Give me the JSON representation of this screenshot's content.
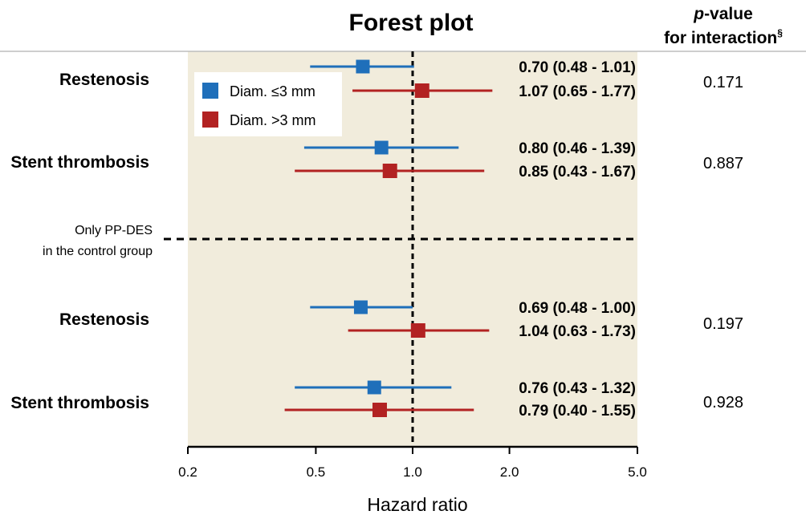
{
  "chart_data": {
    "type": "forest",
    "title": "Forest plot",
    "pvalue_header": {
      "italic": "p",
      "rest": "-value",
      "line2": "for interaction",
      "sup": "§"
    },
    "xlabel": "Hazard ratio",
    "xscale": "log",
    "xlim": [
      0.2,
      5.0
    ],
    "xticks": [
      "0.2",
      "0.5",
      "1.0",
      "2.0",
      "5.0"
    ],
    "reference_line": 1.0,
    "legend": [
      {
        "label": "Diam. ≤3 mm",
        "color": "#1f6fba"
      },
      {
        "label": "Diam. >3 mm",
        "color": "#b22222"
      }
    ],
    "separator_note": [
      "Only PP-DES",
      "in the control group"
    ],
    "groups": [
      {
        "label": "Restenosis",
        "p_value": "0.171",
        "rows": [
          {
            "series": 0,
            "hr": 0.7,
            "lo": 0.48,
            "hi": 1.01,
            "text": "0.70 (0.48 - 1.01)"
          },
          {
            "series": 1,
            "hr": 1.07,
            "lo": 0.65,
            "hi": 1.77,
            "text": "1.07 (0.65 - 1.77)"
          }
        ]
      },
      {
        "label": "Stent thrombosis",
        "p_value": "0.887",
        "rows": [
          {
            "series": 0,
            "hr": 0.8,
            "lo": 0.46,
            "hi": 1.39,
            "text": "0.80 (0.46 - 1.39)"
          },
          {
            "series": 1,
            "hr": 0.85,
            "lo": 0.43,
            "hi": 1.67,
            "text": "0.85 (0.43 - 1.67)"
          }
        ]
      },
      {
        "label": "Restenosis",
        "p_value": "0.197",
        "rows": [
          {
            "series": 0,
            "hr": 0.69,
            "lo": 0.48,
            "hi": 1.0,
            "text": "0.69 (0.48 - 1.00)"
          },
          {
            "series": 1,
            "hr": 1.04,
            "lo": 0.63,
            "hi": 1.73,
            "text": "1.04 (0.63 - 1.73)"
          }
        ]
      },
      {
        "label": "Stent thrombosis",
        "p_value": "0.928",
        "rows": [
          {
            "series": 0,
            "hr": 0.76,
            "lo": 0.43,
            "hi": 1.32,
            "text": "0.76 (0.43 - 1.32)"
          },
          {
            "series": 1,
            "hr": 0.79,
            "lo": 0.4,
            "hi": 1.55,
            "text": "0.79 (0.40 - 1.55)"
          }
        ]
      }
    ],
    "colors": {
      "panel": "#f1ecdc",
      "axis": "#000000"
    }
  }
}
